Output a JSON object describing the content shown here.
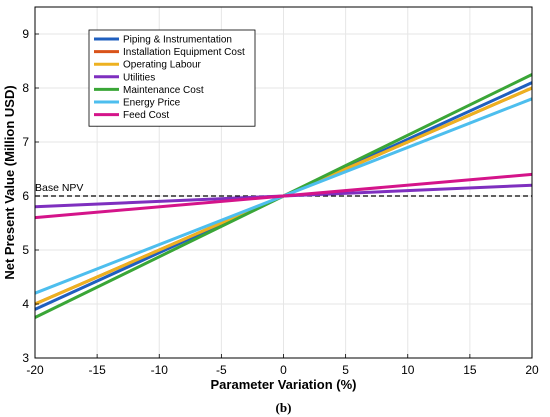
{
  "chart_data": {
    "type": "line",
    "x": [
      -20,
      20
    ],
    "xlabel": "Parameter Variation (%)",
    "ylabel": "Net Present Value (Million USD)",
    "xlim": [
      -20,
      20
    ],
    "ylim": [
      3,
      9.5
    ],
    "xticks": [
      -20,
      -15,
      -10,
      -5,
      0,
      5,
      10,
      15,
      20
    ],
    "yticks": [
      3,
      4,
      5,
      6,
      7,
      8,
      9
    ],
    "grid": true,
    "legend_position": "top-left",
    "series": [
      {
        "name": "Piping & Instrumentation",
        "color": "#1f5fbf",
        "values": [
          3.9,
          8.1
        ]
      },
      {
        "name": "Installation Equipment Cost",
        "color": "#d95319",
        "values": [
          4.0,
          8.0
        ]
      },
      {
        "name": "Operating Labour",
        "color": "#edb120",
        "values": [
          4.0,
          8.0
        ]
      },
      {
        "name": "Utilities",
        "color": "#7e2fbf",
        "values": [
          5.8,
          6.2
        ]
      },
      {
        "name": "Maintenance Cost",
        "color": "#3aa637",
        "values": [
          3.75,
          8.25
        ]
      },
      {
        "name": "Energy Price",
        "color": "#4dbeee",
        "values": [
          4.2,
          7.8
        ]
      },
      {
        "name": "Feed Cost",
        "color": "#d4148a",
        "values": [
          5.6,
          6.4
        ]
      }
    ],
    "reference_line": {
      "label": "Base NPV",
      "y": 6.0,
      "style": "dashed",
      "color": "#000000"
    },
    "panel_label": "(b)"
  }
}
